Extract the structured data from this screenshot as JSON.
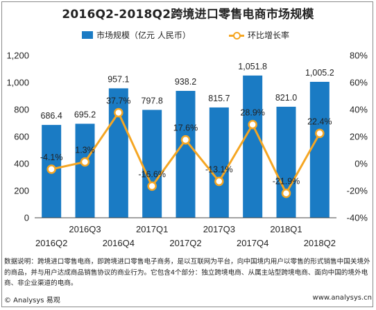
{
  "title": "2016Q2-2018Q2跨境进口零售电商市场规模",
  "legend": {
    "bar_label": "市场规模（亿元 人民币）",
    "line_label": "环比增长率"
  },
  "colors": {
    "bar": "#1a7bc4",
    "line": "#f5a623"
  },
  "chart_data": {
    "type": "bar",
    "categories": [
      "2016Q2",
      "2016Q3",
      "2016Q4",
      "2017Q1",
      "2017Q2",
      "2017Q3",
      "2017Q4",
      "2018Q1",
      "2018Q2"
    ],
    "series": [
      {
        "name": "市场规模（亿元 人民币）",
        "type": "bar",
        "axis": "left",
        "values": [
          686.4,
          695.2,
          957.1,
          797.8,
          938.2,
          815.7,
          1051.8,
          821.0,
          1005.2
        ],
        "labels": [
          "686.4",
          "695.2",
          "957.1",
          "797.8",
          "938.2",
          "815.7",
          "1,051.8",
          "821.0",
          "1,005.2"
        ]
      },
      {
        "name": "环比增长率",
        "type": "line",
        "axis": "right",
        "values": [
          -4.1,
          1.3,
          37.7,
          -16.6,
          17.6,
          -13.1,
          28.9,
          -21.9,
          22.4
        ],
        "labels": [
          "-4.1%",
          "1.3%",
          "37.7%",
          "-16.6%",
          "17.6%",
          "-13.1%",
          "28.9%",
          "-21.9%",
          "22.4%"
        ]
      }
    ],
    "y_left": {
      "ylim": [
        0,
        1200
      ],
      "ticks": [
        "0",
        "200",
        "400",
        "600",
        "800",
        "1,000",
        "1,200"
      ]
    },
    "y_right": {
      "ylim": [
        -40,
        80
      ],
      "ticks": [
        "-40%",
        "-20%",
        "0%",
        "20%",
        "40%",
        "60%",
        "80%"
      ]
    },
    "legend_position": "top",
    "grid": false
  },
  "note": "数据说明：跨境进口零售电商，即跨境进口零售电子商务，是以互联网为平台，向中国境内用户以零售的形式销售中国关境外的商品，并与用户达成商品销售协议的商业行为。它包含4个部分：独立跨境电商、从属主站型跨境电商、面向中国的境外电商、非企业渠道的电商。",
  "footer": {
    "left": "© Analysys 易观",
    "right": "www.analysys.cn"
  }
}
